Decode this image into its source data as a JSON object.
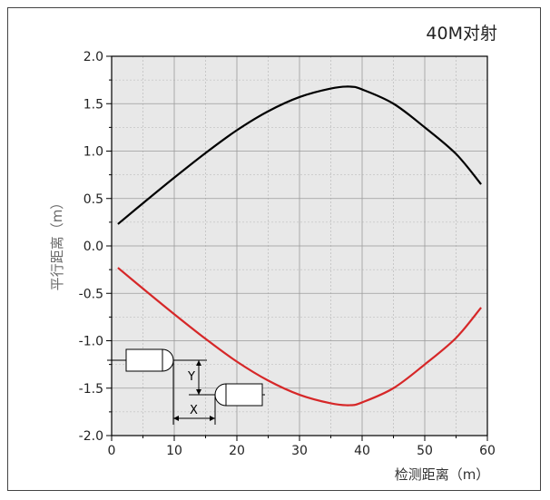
{
  "chart_data": {
    "type": "line",
    "title": "40M对射",
    "xlabel": "检测距离（m）",
    "ylabel": "平行距离（m）",
    "xlim": [
      0,
      60
    ],
    "ylim": [
      -2.0,
      2.0
    ],
    "x_ticks": [
      "0",
      "10",
      "20",
      "30",
      "40",
      "50",
      "60"
    ],
    "y_ticks": [
      "2.0",
      "1.5",
      "1.0",
      "0.5",
      "0.0",
      "-0.5",
      "-1.0",
      "-1.5",
      "-2.0"
    ],
    "grid": true,
    "series": [
      {
        "color": "#000000",
        "x": [
          1,
          5,
          10,
          15,
          20,
          25,
          30,
          35,
          38,
          40,
          45,
          50,
          55,
          59
        ],
        "y": [
          0.23,
          0.45,
          0.72,
          0.98,
          1.22,
          1.42,
          1.57,
          1.66,
          1.68,
          1.65,
          1.5,
          1.25,
          0.97,
          0.65
        ]
      },
      {
        "color": "#d62728",
        "x": [
          1,
          5,
          10,
          15,
          20,
          25,
          30,
          35,
          38,
          40,
          45,
          50,
          55,
          59
        ],
        "y": [
          -0.23,
          -0.45,
          -0.72,
          -0.98,
          -1.22,
          -1.42,
          -1.57,
          -1.66,
          -1.68,
          -1.65,
          -1.5,
          -1.25,
          -0.97,
          -0.65
        ]
      }
    ]
  },
  "diagram": {
    "y_label": "Y",
    "x_label": "X"
  },
  "colors": {
    "plot_bg": "#e8e8e8",
    "grid": "#9a9a9a",
    "axis": "#000000"
  }
}
